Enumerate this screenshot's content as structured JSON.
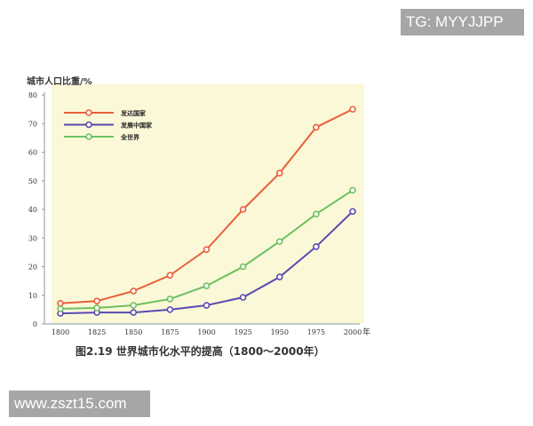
{
  "chart_data": {
    "type": "line",
    "title": "",
    "caption": "图2.19  世界城市化水平的提高（1800～2000年）",
    "ylabel": "城市人口比重/%",
    "xlabel": "年",
    "x": [
      1800,
      1825,
      1850,
      1875,
      1900,
      1925,
      1950,
      1975,
      2000
    ],
    "xlim": [
      1800,
      2000
    ],
    "ylim": [
      0,
      80
    ],
    "yticks": [
      0,
      10,
      20,
      30,
      40,
      50,
      60,
      70,
      80
    ],
    "grid": false,
    "legend_position": "top-left",
    "background_color": "#fbf8d8",
    "series": [
      {
        "name": "发达国家",
        "color": "#e8603c",
        "values": [
          7.2,
          8.0,
          11.5,
          17.0,
          26.0,
          40.0,
          52.7,
          68.7,
          75.0
        ]
      },
      {
        "name": "发展中国家",
        "color": "#5a4ab0",
        "values": [
          3.7,
          4.0,
          4.0,
          5.0,
          6.5,
          9.3,
          16.4,
          27.0,
          39.3
        ]
      },
      {
        "name": "全世界",
        "color": "#6cc060",
        "values": [
          5.3,
          5.6,
          6.5,
          8.7,
          13.3,
          20.0,
          28.8,
          38.4,
          46.7
        ]
      }
    ]
  },
  "watermarks": {
    "top": "TG: MYYJJPP",
    "bottom": "www.zszt15.com"
  }
}
